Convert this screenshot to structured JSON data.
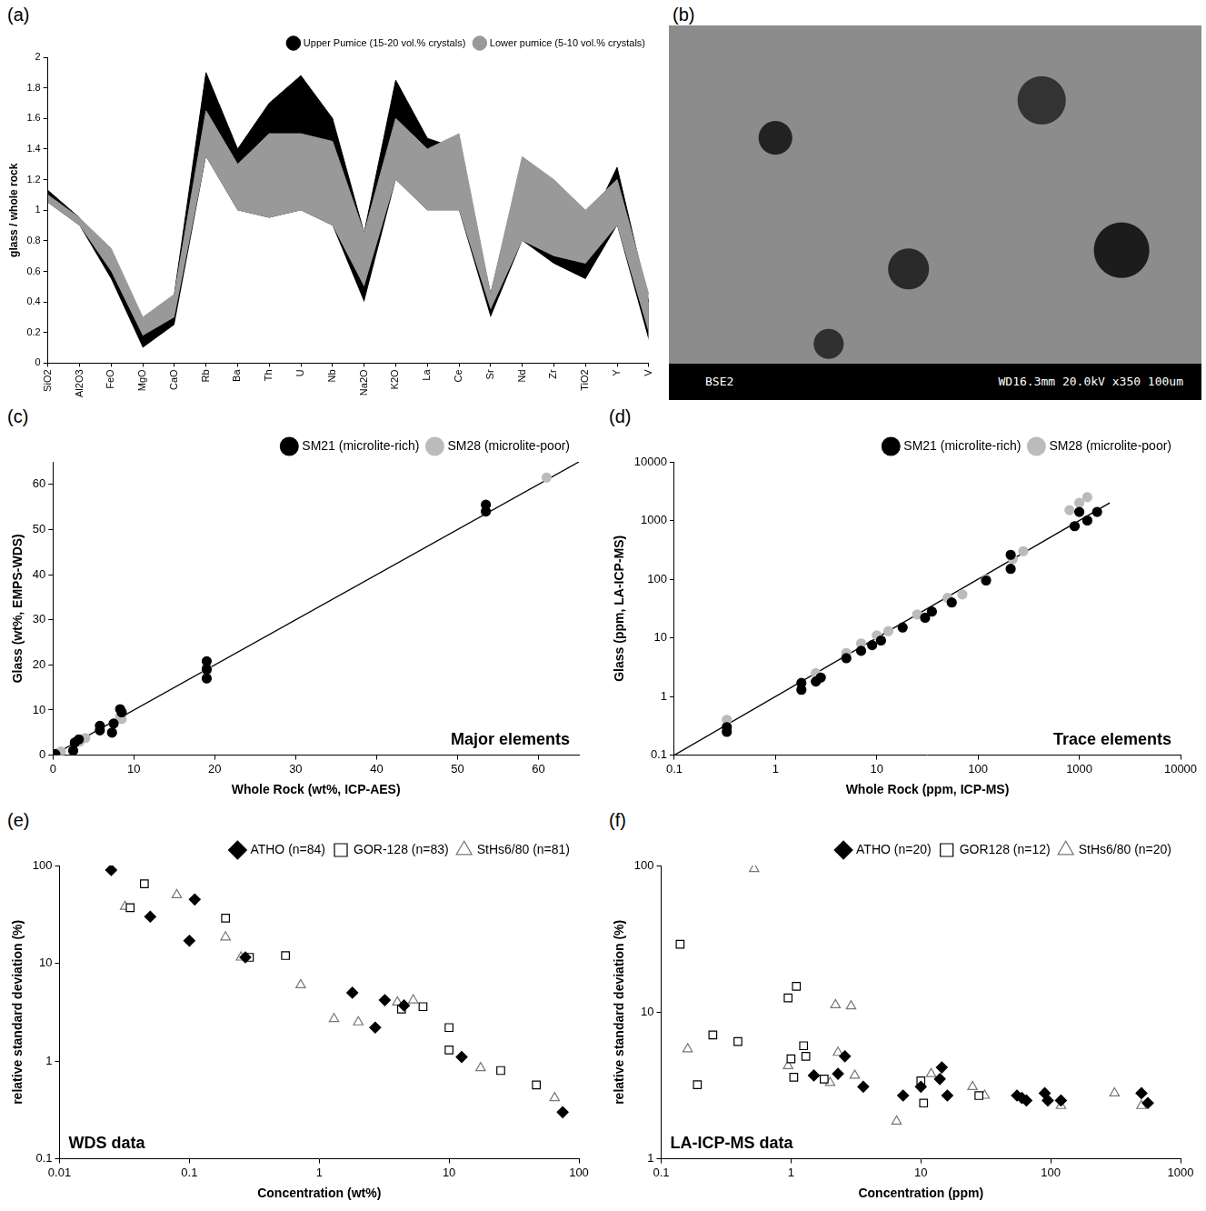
{
  "chart_data": [
    {
      "panel": "(a)",
      "type": "band",
      "categories": [
        "SiO2",
        "Al2O3",
        "FeO",
        "MgO",
        "CaO",
        "Rb",
        "Ba",
        "Th",
        "U",
        "Nb",
        "Na2O",
        "K2O",
        "La",
        "Ce",
        "Sr",
        "Nd",
        "Zr",
        "TiO2",
        "Y",
        "V"
      ],
      "y_label": "glass / whole rock",
      "ylim": [
        0,
        2
      ],
      "yticks": [
        0,
        0.2,
        0.4,
        0.6,
        0.8,
        1,
        1.2,
        1.4,
        1.6,
        1.8,
        2
      ],
      "grid": false,
      "legend": "top-right",
      "series": [
        {
          "name": "Upper Pumice (15-20 vol.% crystals)",
          "color": "#000000",
          "lower": [
            1.05,
            0.9,
            0.55,
            0.1,
            0.25,
            1.35,
            1.0,
            0.95,
            1.0,
            0.9,
            0.4,
            1.2,
            1.0,
            1.0,
            0.3,
            0.8,
            0.65,
            0.55,
            0.9,
            0.15
          ],
          "upper": [
            1.13,
            0.95,
            0.65,
            0.2,
            0.45,
            1.9,
            1.4,
            1.7,
            1.88,
            1.6,
            0.85,
            1.85,
            1.47,
            1.4,
            0.45,
            1.3,
            0.9,
            0.85,
            1.28,
            0.4
          ]
        },
        {
          "name": "Lower pumice (5-10 vol.% crystals)",
          "color": "#999999",
          "lower": [
            1.05,
            0.9,
            0.6,
            0.18,
            0.3,
            1.35,
            1.0,
            0.95,
            1.0,
            0.9,
            0.5,
            1.2,
            1.0,
            1.0,
            0.35,
            0.8,
            0.7,
            0.65,
            0.9,
            0.2
          ],
          "upper": [
            1.1,
            0.95,
            0.75,
            0.3,
            0.45,
            1.65,
            1.3,
            1.5,
            1.5,
            1.45,
            0.85,
            1.6,
            1.4,
            1.5,
            0.45,
            1.35,
            1.2,
            1.0,
            1.2,
            0.45
          ]
        }
      ]
    },
    {
      "panel": "(c)",
      "type": "scatter",
      "annotation": "Major elements",
      "x_label": "Whole Rock (wt%, ICP-AES)",
      "y_label": "Glass (wt%, EMPS-WDS)",
      "xlim": [
        0,
        65
      ],
      "xticks": [
        0,
        10,
        20,
        30,
        40,
        50,
        60
      ],
      "ylim": [
        0,
        65
      ],
      "yticks": [
        0,
        10,
        20,
        30,
        40,
        50,
        60
      ],
      "grid": false,
      "legend": "top-right",
      "series": [
        {
          "type": "line",
          "color": "#000000",
          "x": [
            0,
            65
          ],
          "values": [
            0,
            65
          ]
        },
        {
          "name": "SM21 (microlite-rich)",
          "color": "#000000",
          "marker": "circle",
          "x": [
            0.1,
            0.3,
            2.5,
            2.7,
            3.2,
            5.8,
            5.8,
            7.3,
            7.5,
            8.3,
            8.5,
            19,
            19,
            19,
            53.5,
            53.5
          ],
          "values": [
            0.1,
            0.2,
            1,
            2.8,
            3.5,
            5.5,
            6.5,
            5,
            7,
            10.2,
            9.5,
            17,
            20.8,
            19,
            54,
            55.5
          ]
        },
        {
          "name": "SM28 (microlite-poor)",
          "color": "#bbbbbb",
          "marker": "circle",
          "x": [
            0.1,
            0.5,
            1,
            3.3,
            4,
            8.5,
            8.3,
            19,
            19,
            61
          ],
          "values": [
            0.1,
            0.4,
            0.8,
            3,
            3.8,
            8,
            8.5,
            18.5,
            19.5,
            61.5
          ]
        }
      ]
    },
    {
      "panel": "(d)",
      "type": "scatter",
      "annotation": "Trace elements",
      "log": true,
      "x_label": "Whole Rock (ppm, ICP-MS)",
      "y_label": "Glass (ppm, LA-ICP-MS)",
      "xlim": [
        0.1,
        10000
      ],
      "xticks": [
        0.1,
        1,
        10,
        100,
        1000,
        10000
      ],
      "ylim": [
        0.1,
        10000
      ],
      "yticks": [
        0.1,
        1,
        10,
        100,
        1000,
        10000
      ],
      "grid": false,
      "legend": "top-right",
      "series": [
        {
          "type": "line",
          "color": "#000000",
          "x": [
            0.1,
            2000
          ],
          "values": [
            0.1,
            2000
          ]
        },
        {
          "name": "SM21 (microlite-rich)",
          "color": "#000000",
          "marker": "circle",
          "x": [
            0.33,
            0.33,
            1.8,
            1.8,
            2.5,
            2.8,
            5,
            7,
            9,
            11,
            18,
            30,
            35,
            55,
            120,
            210,
            210,
            900,
            1000,
            1200,
            1500
          ],
          "values": [
            0.25,
            0.3,
            1.3,
            1.7,
            1.8,
            2.1,
            4.5,
            6,
            7.5,
            9,
            15,
            22,
            28,
            40,
            95,
            150,
            260,
            800,
            1400,
            1000,
            1400
          ]
        },
        {
          "name": "SM28 (microlite-poor)",
          "color": "#bbbbbb",
          "marker": "circle",
          "x": [
            0.33,
            2.5,
            5,
            7,
            10,
            13,
            25,
            50,
            70,
            120,
            220,
            280,
            800,
            1000,
            1200
          ],
          "values": [
            0.4,
            2.5,
            5.5,
            8,
            11,
            13,
            25,
            48,
            55,
            100,
            220,
            300,
            1500,
            2000,
            2500
          ]
        }
      ]
    },
    {
      "panel": "(e)",
      "type": "scatter",
      "annotation": "WDS data",
      "log": true,
      "x_label": "Concentration (wt%)",
      "y_label": "relative standard deviation (%)",
      "xlim": [
        0.01,
        100
      ],
      "xticks": [
        0.01,
        0.1,
        1,
        10,
        100
      ],
      "ylim": [
        0.1,
        100
      ],
      "yticks": [
        0.1,
        1,
        10,
        100
      ],
      "grid": false,
      "legend": "top-right",
      "series": [
        {
          "name": "ATHO (n=84)",
          "color": "#000000",
          "marker": "diamond",
          "x": [
            0.025,
            0.05,
            0.1,
            0.11,
            0.27,
            1.8,
            2.7,
            3.2,
            4.5,
            12.5,
            75
          ],
          "values": [
            90,
            30,
            17,
            45,
            11.5,
            5,
            2.2,
            4.2,
            3.7,
            1.1,
            0.3
          ]
        },
        {
          "name": "GOR-128 (n=83)",
          "color": "#000000",
          "marker": "square-open",
          "x": [
            0.045,
            0.035,
            0.19,
            0.29,
            0.55,
            4.3,
            6.3,
            10,
            10,
            25,
            47
          ],
          "values": [
            65,
            37,
            29,
            11.5,
            12,
            3.4,
            3.6,
            2.2,
            1.3,
            0.8,
            0.57
          ]
        },
        {
          "name": "StHs6/80 (n=81)",
          "color": "#777777",
          "marker": "triangle-open",
          "x": [
            0.032,
            0.08,
            0.19,
            0.25,
            0.72,
            1.3,
            2,
            4,
            5.3,
            17.5,
            65
          ],
          "values": [
            38,
            50,
            18.5,
            11.5,
            6,
            2.7,
            2.5,
            4,
            4.2,
            0.85,
            0.42
          ]
        }
      ]
    },
    {
      "panel": "(f)",
      "type": "scatter",
      "annotation": "LA-ICP-MS data",
      "log": true,
      "x_label": "Concentration (ppm)",
      "y_label": "relative standard deviation (%)",
      "xlim": [
        0.1,
        1000
      ],
      "xticks": [
        0.1,
        1,
        10,
        100,
        1000
      ],
      "ylim": [
        1,
        100
      ],
      "yticks": [
        1,
        10,
        100
      ],
      "grid": false,
      "legend": "top-right",
      "series": [
        {
          "name": "ATHO (n=20)",
          "color": "#000000",
          "marker": "diamond",
          "x": [
            1.5,
            2.3,
            2.6,
            3.6,
            7.3,
            10,
            14,
            14.5,
            16,
            55,
            60,
            65,
            90,
            95,
            120,
            500,
            560
          ],
          "values": [
            3.7,
            3.8,
            5,
            3.1,
            2.7,
            3.1,
            3.5,
            4.2,
            2.7,
            2.7,
            2.6,
            2.5,
            2.8,
            2.5,
            2.5,
            2.8,
            2.4
          ]
        },
        {
          "name": "GOR128 (n=12)",
          "color": "#000000",
          "marker": "square-open",
          "x": [
            0.14,
            0.19,
            0.25,
            0.39,
            0.95,
            1.0,
            1.05,
            1.1,
            1.25,
            1.3,
            1.8,
            10,
            10.5,
            28
          ],
          "values": [
            29,
            3.2,
            7,
            6.3,
            12.5,
            4.8,
            3.6,
            15,
            5.9,
            5,
            3.5,
            3.4,
            2.4,
            2.7
          ]
        },
        {
          "name": "StHs6/80 (n=20)",
          "color": "#777777",
          "marker": "triangle-open",
          "x": [
            0.16,
            0.52,
            0.95,
            2.2,
            2.3,
            2.9,
            2,
            3.1,
            6.5,
            12,
            25,
            31,
            120,
            310,
            500
          ],
          "values": [
            5.6,
            95,
            4.3,
            11.2,
            5.3,
            11,
            3.3,
            3.7,
            1.8,
            3.8,
            3.1,
            2.7,
            2.3,
            2.8,
            2.3
          ]
        }
      ]
    }
  ],
  "image_panel": {
    "panel": "(b)",
    "label_left": "BSE2",
    "label_right": "WD16.3mm 20.0kV x350 100um"
  }
}
